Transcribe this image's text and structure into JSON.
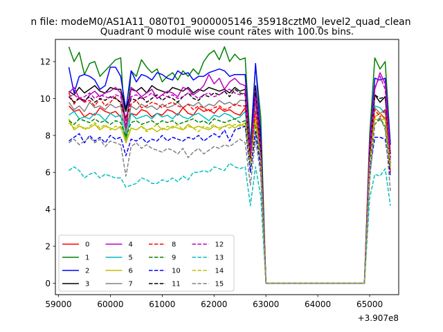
{
  "suptitle": "n file: modeM0/AS1A11_080T01_9000005146_35918cztM0_level2_quad_clean",
  "chart_data": {
    "type": "line",
    "title": "Quadrant 0 module wise count rates with 100.0s bins.",
    "xlabel": "",
    "ylabel": "",
    "x_offset_label": "+3.907e8",
    "xlim": [
      58940,
      65560
    ],
    "ylim": [
      -0.62,
      13.2
    ],
    "xticks": [
      59000,
      60000,
      61000,
      62000,
      63000,
      64000,
      65000
    ],
    "yticks": [
      0,
      2,
      4,
      6,
      8,
      10,
      12
    ],
    "grid": false,
    "legend": {
      "placement": "lower-left",
      "columns": 4
    },
    "x": [
      59200,
      59300,
      59400,
      59500,
      59600,
      59700,
      59800,
      59900,
      60000,
      60100,
      60200,
      60300,
      60400,
      60500,
      60600,
      60700,
      60800,
      60900,
      61000,
      61100,
      61200,
      61300,
      61400,
      61500,
      61600,
      61700,
      61800,
      61900,
      62000,
      62100,
      62200,
      62300,
      62400,
      62500,
      62600,
      62700,
      62800,
      62900,
      63000,
      64000,
      64900,
      65000,
      65100,
      65200,
      65300,
      65400
    ],
    "series": [
      {
        "name": "0",
        "color": "#ff0000",
        "dash": "solid",
        "values": [
          9.6,
          9.3,
          9.4,
          9.0,
          9.2,
          9.1,
          9.5,
          9.3,
          9.2,
          9.3,
          9.0,
          8.6,
          9.2,
          9.1,
          9.4,
          9.3,
          9.0,
          9.2,
          9.1,
          9.4,
          9.3,
          9.1,
          9.5,
          9.2,
          9.1,
          9.5,
          9.3,
          9.4,
          9.2,
          9.5,
          9.3,
          9.4,
          9.2,
          9.1,
          9.5,
          6.5,
          9.0,
          7.0,
          0,
          0,
          0,
          7.0,
          9.0,
          9.2,
          8.9,
          6.0
        ]
      },
      {
        "name": "1",
        "color": "#008000",
        "dash": "solid",
        "values": [
          12.8,
          12.0,
          12.5,
          11.3,
          11.9,
          12.0,
          11.2,
          11.5,
          11.8,
          12.1,
          12.2,
          7.9,
          11.5,
          11.2,
          12.1,
          11.7,
          11.4,
          11.6,
          10.9,
          11.2,
          11.4,
          11.0,
          11.5,
          11.2,
          11.6,
          11.3,
          12.0,
          12.4,
          12.6,
          12.1,
          12.8,
          12.0,
          12.4,
          12.1,
          12.2,
          7.5,
          11.8,
          9.0,
          0,
          0,
          0,
          8.0,
          12.2,
          11.6,
          12.0,
          7.5
        ]
      },
      {
        "name": "2",
        "color": "#0000ff",
        "dash": "solid",
        "values": [
          11.7,
          10.3,
          11.2,
          11.3,
          11.2,
          11.0,
          10.5,
          10.7,
          11.7,
          11.7,
          11.2,
          9.4,
          11.5,
          10.9,
          11.3,
          11.2,
          11.0,
          11.4,
          11.3,
          11.1,
          11.0,
          11.5,
          11.3,
          11.4,
          11.0,
          11.2,
          11.2,
          11.4,
          11.5,
          11.6,
          11.5,
          11.2,
          11.3,
          11.3,
          11.3,
          7.0,
          11.9,
          8.0,
          0,
          0,
          0,
          7.5,
          11.1,
          11.0,
          11.1,
          7.5
        ]
      },
      {
        "name": "3",
        "color": "#000000",
        "dash": "solid",
        "values": [
          10.4,
          10.2,
          10.6,
          10.3,
          10.5,
          10.7,
          10.4,
          10.3,
          10.6,
          10.5,
          10.5,
          9.3,
          10.5,
          10.4,
          10.6,
          10.3,
          10.7,
          10.5,
          10.4,
          10.3,
          10.6,
          10.5,
          10.4,
          10.6,
          10.3,
          10.5,
          10.4,
          10.6,
          10.5,
          10.4,
          10.5,
          10.3,
          10.6,
          10.4,
          10.5,
          6.8,
          10.7,
          7.5,
          0,
          0,
          0,
          7.0,
          10.2,
          9.8,
          10.1,
          7.0
        ]
      },
      {
        "name": "4",
        "color": "#bf00bf",
        "dash": "solid",
        "values": [
          10.3,
          10.6,
          10.0,
          9.8,
          10.2,
          10.4,
          10.1,
          10.3,
          10.4,
          10.6,
          10.3,
          8.4,
          10.6,
          10.4,
          10.1,
          10.3,
          10.5,
          10.0,
          10.2,
          10.4,
          10.3,
          10.1,
          10.6,
          10.5,
          10.2,
          10.4,
          10.7,
          11.3,
          10.8,
          11.1,
          10.5,
          10.9,
          11.1,
          10.8,
          10.7,
          7.0,
          10.4,
          7.5,
          0,
          0,
          0,
          7.5,
          10.5,
          11.4,
          10.8,
          7.0
        ]
      },
      {
        "name": "5",
        "color": "#00bfbf",
        "dash": "solid",
        "values": [
          9.1,
          9.3,
          8.9,
          9.0,
          8.9,
          9.2,
          9.1,
          8.8,
          9.2,
          9.0,
          9.1,
          7.7,
          9.2,
          8.9,
          9.0,
          9.1,
          8.9,
          9.2,
          9.0,
          9.1,
          8.9,
          9.2,
          9.0,
          8.9,
          9.1,
          9.2,
          9.0,
          8.8,
          9.1,
          9.0,
          9.2,
          9.1,
          8.9,
          9.0,
          9.3,
          6.5,
          8.8,
          6.7,
          0,
          0,
          0,
          6.5,
          9.6,
          9.5,
          9.2,
          6.5
        ]
      },
      {
        "name": "6",
        "color": "#bfbf00",
        "dash": "solid",
        "values": [
          8.9,
          8.3,
          8.5,
          8.4,
          8.4,
          8.6,
          8.3,
          8.5,
          8.4,
          8.3,
          8.5,
          7.6,
          8.4,
          8.3,
          8.5,
          8.3,
          8.4,
          8.2,
          8.4,
          8.3,
          8.5,
          8.4,
          8.3,
          8.6,
          8.4,
          8.5,
          8.4,
          8.3,
          8.5,
          8.4,
          8.5,
          8.6,
          8.4,
          8.6,
          8.5,
          6.3,
          9.0,
          6.5,
          0,
          0,
          0,
          6.5,
          8.9,
          8.8,
          8.9,
          6.3
        ]
      },
      {
        "name": "7",
        "color": "#808080",
        "dash": "solid",
        "values": [
          9.8,
          9.4,
          9.6,
          9.3,
          9.8,
          9.5,
          9.6,
          9.4,
          9.7,
          9.5,
          9.6,
          8.1,
          9.6,
          9.4,
          9.7,
          9.5,
          9.6,
          9.4,
          9.7,
          9.5,
          9.6,
          9.8,
          9.5,
          9.7,
          9.6,
          9.8,
          9.5,
          9.7,
          9.6,
          9.9,
          9.7,
          9.8,
          9.6,
          9.9,
          9.9,
          6.5,
          9.8,
          7.0,
          0,
          0,
          0,
          6.5,
          9.5,
          9.2,
          9.4,
          6.5
        ]
      },
      {
        "name": "8",
        "color": "#ff0000",
        "dash": "dashed",
        "values": [
          10.3,
          9.7,
          10.1,
          9.8,
          9.9,
          9.6,
          10.0,
          9.6,
          9.8,
          10.1,
          9.7,
          8.8,
          9.7,
          9.9,
          9.5,
          9.6,
          9.8,
          9.7,
          9.5,
          9.7,
          9.8,
          9.6,
          9.5,
          9.7,
          9.4,
          9.6,
          9.5,
          9.3,
          9.5,
          9.6,
          9.4,
          9.5,
          9.7,
          9.6,
          9.6,
          6.7,
          9.3,
          7.0,
          0,
          0,
          0,
          6.8,
          9.4,
          9.0,
          9.4,
          6.3
        ]
      },
      {
        "name": "9",
        "color": "#008000",
        "dash": "dashed",
        "values": [
          8.8,
          8.6,
          8.9,
          8.8,
          8.7,
          8.9,
          8.7,
          8.8,
          8.6,
          8.8,
          8.7,
          7.9,
          8.7,
          8.8,
          8.6,
          8.7,
          8.8,
          8.6,
          8.8,
          8.7,
          8.8,
          8.6,
          8.7,
          8.8,
          8.9,
          8.7,
          8.8,
          8.6,
          8.9,
          8.8,
          8.7,
          8.8,
          8.9,
          8.7,
          8.8,
          6.3,
          8.6,
          6.5,
          0,
          0,
          0,
          6.4,
          8.6,
          8.9,
          8.5,
          6.2
        ]
      },
      {
        "name": "10",
        "color": "#0000ff",
        "dash": "dashed",
        "values": [
          7.7,
          7.9,
          8.1,
          7.6,
          8.0,
          7.7,
          7.9,
          7.6,
          8.0,
          7.8,
          7.9,
          6.9,
          7.8,
          7.7,
          7.9,
          7.6,
          7.8,
          7.7,
          8.0,
          7.7,
          7.9,
          7.8,
          7.7,
          7.9,
          7.8,
          8.0,
          7.7,
          7.9,
          8.1,
          7.9,
          8.3,
          7.7,
          8.3,
          8.4,
          8.5,
          6.0,
          8.2,
          6.2,
          0,
          0,
          0,
          6.0,
          7.9,
          7.9,
          7.8,
          5.8
        ]
      },
      {
        "name": "11",
        "color": "#000000",
        "dash": "dashed",
        "values": [
          10.1,
          9.8,
          10.0,
          9.9,
          10.1,
          9.8,
          10.0,
          9.9,
          10.1,
          10.0,
          9.8,
          8.9,
          10.0,
          9.9,
          10.1,
          9.8,
          10.0,
          10.2,
          9.9,
          10.1,
          10.0,
          9.8,
          10.1,
          10.3,
          10.0,
          9.9,
          10.2,
          10.1,
          10.3,
          10.2,
          10.4,
          10.1,
          10.5,
          10.3,
          10.2,
          6.8,
          10.3,
          7.2,
          0,
          0,
          0,
          7.0,
          10.2,
          10.0,
          10.1,
          6.8
        ]
      },
      {
        "name": "12",
        "color": "#bf00bf",
        "dash": "dashed",
        "values": [
          10.1,
          10.2,
          10.0,
          10.1,
          10.3,
          10.0,
          10.2,
          10.1,
          10.0,
          10.2,
          10.1,
          8.9,
          10.1,
          10.2,
          10.0,
          10.1,
          10.3,
          10.0,
          10.2,
          10.1,
          10.2,
          10.0,
          10.1,
          10.3,
          10.2,
          10.0,
          10.2,
          10.3,
          10.1,
          10.2,
          10.4,
          10.5,
          10.3,
          10.2,
          10.3,
          6.9,
          10.1,
          7.0,
          0,
          0,
          0,
          6.8,
          10.6,
          11.2,
          10.5,
          6.5
        ]
      },
      {
        "name": "13",
        "color": "#00bfbf",
        "dash": "dashed",
        "values": [
          6.1,
          6.3,
          6.1,
          5.7,
          5.9,
          6.0,
          5.7,
          5.9,
          5.8,
          5.7,
          5.7,
          5.2,
          5.3,
          5.4,
          5.7,
          5.6,
          5.4,
          5.4,
          5.6,
          5.5,
          5.7,
          5.5,
          5.8,
          5.6,
          6.0,
          6.0,
          6.1,
          6.0,
          6.3,
          6.2,
          6.1,
          6.5,
          6.3,
          6.2,
          6.3,
          4.2,
          6.3,
          4.7,
          0,
          0,
          0,
          4.6,
          5.9,
          5.8,
          6.2,
          4.2
        ]
      },
      {
        "name": "14",
        "color": "#bfbf00",
        "dash": "dashed",
        "values": [
          8.7,
          8.4,
          8.6,
          8.3,
          8.5,
          8.7,
          8.4,
          8.6,
          8.3,
          8.5,
          8.4,
          7.8,
          8.4,
          8.3,
          8.5,
          8.2,
          8.4,
          8.6,
          8.3,
          8.5,
          8.4,
          8.6,
          8.3,
          8.5,
          8.4,
          8.2,
          8.5,
          8.4,
          8.6,
          8.3,
          8.5,
          8.4,
          8.6,
          8.5,
          8.7,
          6.4,
          8.8,
          6.7,
          0,
          0,
          0,
          6.5,
          9.0,
          9.2,
          8.8,
          6.3
        ]
      },
      {
        "name": "15",
        "color": "#808080",
        "dash": "dashed",
        "values": [
          7.6,
          7.8,
          7.5,
          7.7,
          7.9,
          7.6,
          7.8,
          7.4,
          7.7,
          7.6,
          7.5,
          5.8,
          7.4,
          7.6,
          7.3,
          7.5,
          7.3,
          7.2,
          7.1,
          7.3,
          7.2,
          7.0,
          7.3,
          6.8,
          7.1,
          7.3,
          7.0,
          7.2,
          7.4,
          7.3,
          7.5,
          7.4,
          7.6,
          7.8,
          7.6,
          5.3,
          7.8,
          5.8,
          0,
          0,
          0,
          5.5,
          8.6,
          9.0,
          8.3,
          5.0
        ]
      }
    ]
  }
}
